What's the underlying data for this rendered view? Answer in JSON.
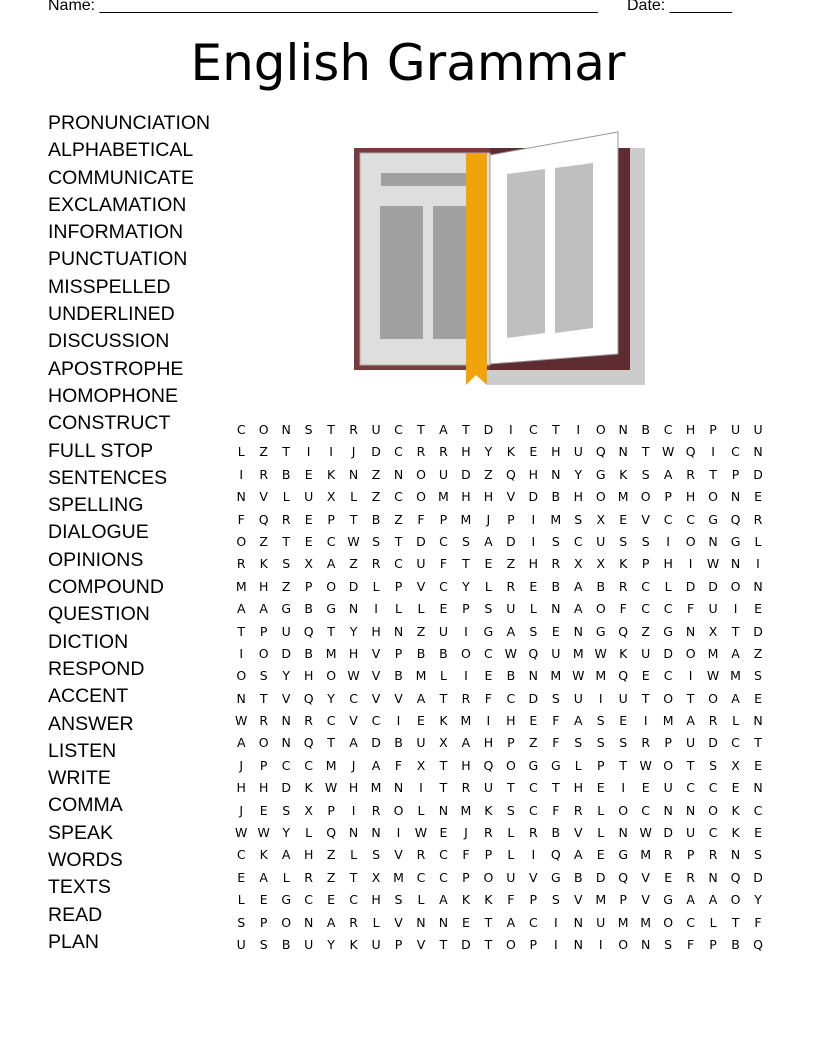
{
  "header": {
    "name_label": "Name: ________________________________________________________",
    "date_label": "Date: _______"
  },
  "title": "English Grammar",
  "book_illustration": {
    "icon": "open-book-with-bookmark",
    "cover_color": "#7a3a3e",
    "bookmark_color": "#f0a30a"
  },
  "word_list": [
    "PRONUNCIATION",
    "ALPHABETICAL",
    "COMMUNICATE",
    "EXCLAMATION",
    "INFORMATION",
    "PUNCTUATION",
    "MISSPELLED",
    "UNDERLINED",
    "DISCUSSION",
    "APOSTROPHE",
    "HOMOPHONE",
    "CONSTRUCT",
    "FULL STOP",
    "SENTENCES",
    "SPELLING",
    "DIALOGUE",
    "OPINIONS",
    "COMPOUND",
    "QUESTION",
    "DICTION",
    "RESPOND",
    "ACCENT",
    "ANSWER",
    "LISTEN",
    "WRITE",
    "COMMA",
    "SPEAK",
    "WORDS",
    "TEXTS",
    "READ",
    "PLAN"
  ],
  "grid": [
    "CONSTRUCTATDICTIONBCHPUU",
    "LZTIIJDCRRHYKEHUQNTWQICN",
    "IRBEKNZNOUDZQHNYGKSARTPD",
    "NVLUXLZCOMHHVDBHOMOPHONE",
    "FQREPTBZFPMJPIMSXEVCCGQR",
    "OZTECWSTDCSADISCUSSIONGL",
    "RKSXAZRCUFTEZHRXXKPHIWNI",
    "MHZPODLPVCYLREBABRCLDDON",
    "AAGBGNILLEPSULNAOFCCFUIE",
    "TPUQTYHNZUIGASENGQZGNXTD",
    "IODBMHVPBBOCWQUMWKUDOMAZ",
    "OSYHOWVBMLIEBNMWMQECIWMS",
    "NTVQYCVVATRFCDSUIUTOTOAE",
    "WRNRCVCIEKMIHEFASEIMARLN",
    "AONQTADBUXAHPZFSSSRPUDCT",
    "JPCCMJAFXTHQOGGLPTWOTSXE",
    "HHDKWHMNITRUTCTHEIEUCCEN",
    "JESXPIROLNMKSCFRLOCNNOKC",
    "WWYLQNNIWEJRLRBVLNWDUCKE",
    "CKAHZLSVRCFPLIQAEGMRPRNS",
    "EALRZTXMCCPOUVGBDQVERNQD",
    "LEGCECHSLAKKFPSVMPVGAAOY",
    "SPONARLVNNETACINUMMOCLTF",
    "USBUYKUPVTDTOPINIONSFPBQ"
  ]
}
